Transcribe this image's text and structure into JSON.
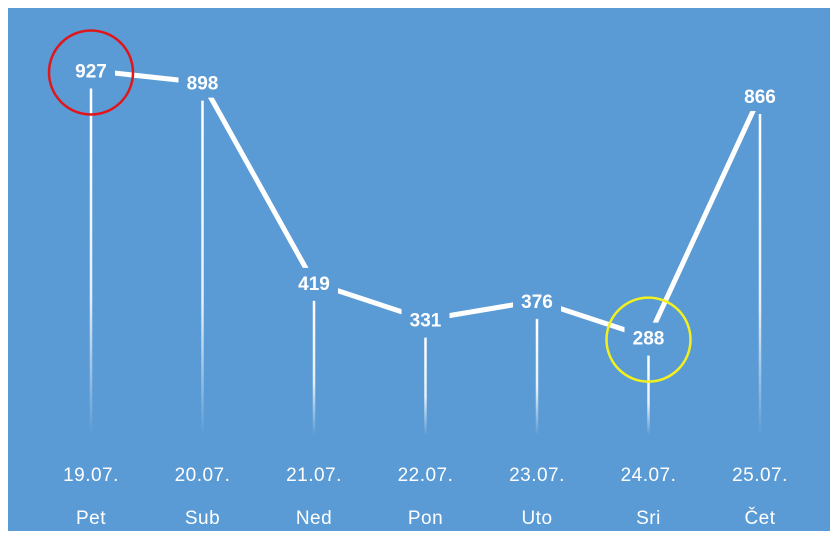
{
  "colors": {
    "background": "#5b9bd5",
    "line": "#ffffff",
    "label_text": "#ffffff",
    "max_highlight": "#e0161b",
    "min_highlight": "#f2f01e"
  },
  "chart_data": {
    "type": "line",
    "categories": [
      {
        "date": "19.07.",
        "day": "Pet"
      },
      {
        "date": "20.07.",
        "day": "Sub"
      },
      {
        "date": "21.07.",
        "day": "Ned"
      },
      {
        "date": "22.07.",
        "day": "Pon"
      },
      {
        "date": "23.07.",
        "day": "Uto"
      },
      {
        "date": "24.07.",
        "day": "Sri"
      },
      {
        "date": "25.07.",
        "day": "Čet"
      }
    ],
    "series": [
      {
        "values": [
          927,
          898,
          419,
          331,
          376,
          288,
          866
        ]
      }
    ],
    "ylim": [
      0,
      1000
    ],
    "grid": false,
    "data_labels": [
      "927",
      "898",
      "419",
      "331",
      "376",
      "288",
      "866"
    ],
    "highlights": [
      {
        "index": 0,
        "kind": "max",
        "color": "#e0161b"
      },
      {
        "index": 5,
        "kind": "min",
        "color": "#f2f01e"
      }
    ]
  }
}
